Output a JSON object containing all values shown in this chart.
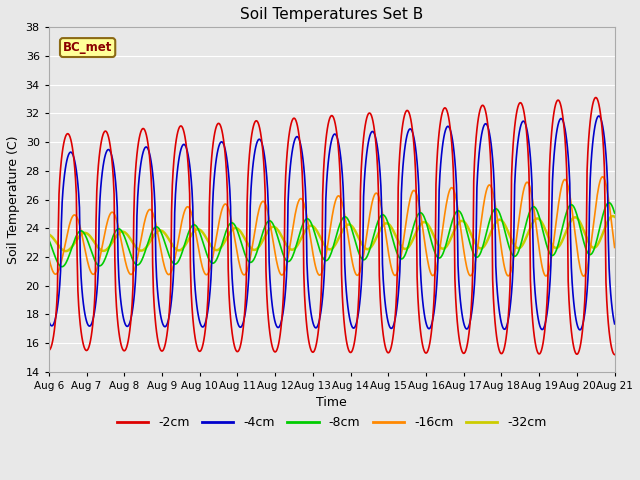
{
  "title": "Soil Temperatures Set B",
  "xlabel": "Time",
  "ylabel": "Soil Temperature (C)",
  "ylim": [
    14,
    38
  ],
  "yticks": [
    14,
    16,
    18,
    20,
    22,
    24,
    26,
    28,
    30,
    32,
    34,
    36,
    38
  ],
  "bg_color": "#e8e8e8",
  "plot_bg_color": "#e8e8e8",
  "legend_label": "BC_met",
  "legend_bg": "#ffff99",
  "legend_border": "#8b6914",
  "series": {
    "-2cm": {
      "color": "#dd0000",
      "lw": 1.2
    },
    "-4cm": {
      "color": "#0000cc",
      "lw": 1.2
    },
    "-8cm": {
      "color": "#00cc00",
      "lw": 1.2
    },
    "-16cm": {
      "color": "#ff8800",
      "lw": 1.2
    },
    "-32cm": {
      "color": "#cccc00",
      "lw": 1.8
    }
  },
  "xtick_labels": [
    "Aug 6",
    "Aug 7",
    "Aug 8",
    "Aug 9",
    "Aug 10",
    "Aug 11",
    "Aug 12",
    "Aug 13",
    "Aug 14",
    "Aug 15",
    "Aug 16",
    "Aug 17",
    "Aug 18",
    "Aug 19",
    "Aug 20",
    "Aug 21"
  ],
  "n_days": 15
}
